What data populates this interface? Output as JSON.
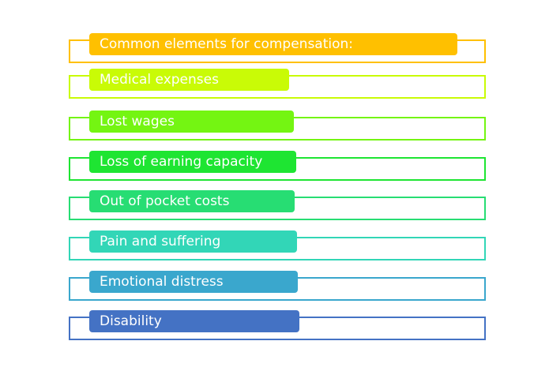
{
  "items": [
    {
      "label": "Common elements for compensation:",
      "color": "#ffc000"
    },
    {
      "label": "Medical expenses",
      "color": "#c9fb06"
    },
    {
      "label": "Lost wages",
      "color": "#74f512"
    },
    {
      "label": "Loss of earning capacity",
      "color": "#1ee532"
    },
    {
      "label": "Out of pocket costs",
      "color": "#27dd73"
    },
    {
      "label": "Pain and suffering",
      "color": "#32d6b7"
    },
    {
      "label": "Emotional distress",
      "color": "#3aa7cd"
    },
    {
      "label": "Disability",
      "color": "#4472c4"
    }
  ]
}
